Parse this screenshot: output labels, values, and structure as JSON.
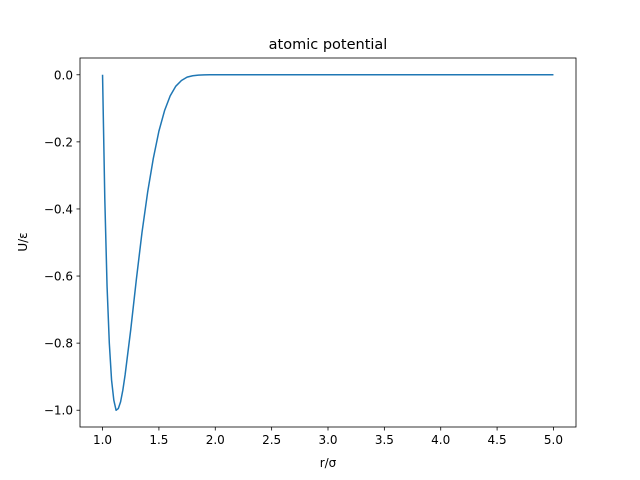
{
  "chart_data": {
    "type": "line",
    "title": "atomic potential",
    "xlabel": "r/σ",
    "ylabel": "U/ε",
    "xlim": [
      0.8,
      5.2
    ],
    "ylim": [
      -1.05,
      0.05
    ],
    "xticks": [
      1.0,
      1.5,
      2.0,
      2.5,
      3.0,
      3.5,
      4.0,
      4.5,
      5.0
    ],
    "xtick_labels": [
      "1.0",
      "1.5",
      "2.0",
      "2.5",
      "3.0",
      "3.5",
      "4.0",
      "4.5",
      "5.0"
    ],
    "yticks": [
      0.0,
      -0.2,
      -0.4,
      -0.6,
      -0.8,
      -1.0
    ],
    "ytick_labels": [
      "0.0",
      "−0.2",
      "−0.4",
      "−0.6",
      "−0.8",
      "−1.0"
    ],
    "grid": false,
    "series": [
      {
        "color": "#1f77b4",
        "x": [
          1.0,
          1.02,
          1.04,
          1.06,
          1.08,
          1.1,
          1.12,
          1.14,
          1.16,
          1.18,
          1.2,
          1.25,
          1.3,
          1.35,
          1.4,
          1.45,
          1.5,
          1.55,
          1.6,
          1.65,
          1.7,
          1.75,
          1.8,
          1.85,
          1.9,
          1.95,
          2.0,
          2.5,
          3.0,
          3.5,
          4.0,
          4.5,
          5.0
        ],
        "y": [
          0.0,
          -0.37,
          -0.63,
          -0.8,
          -0.91,
          -0.97,
          -1.0,
          -0.995,
          -0.975,
          -0.94,
          -0.895,
          -0.76,
          -0.61,
          -0.47,
          -0.35,
          -0.25,
          -0.168,
          -0.107,
          -0.063,
          -0.034,
          -0.017,
          -0.007,
          -0.003,
          -0.001,
          -0.0003,
          -0.0001,
          0.0,
          0.0,
          0.0,
          0.0,
          0.0,
          0.0,
          0.0
        ]
      }
    ]
  }
}
